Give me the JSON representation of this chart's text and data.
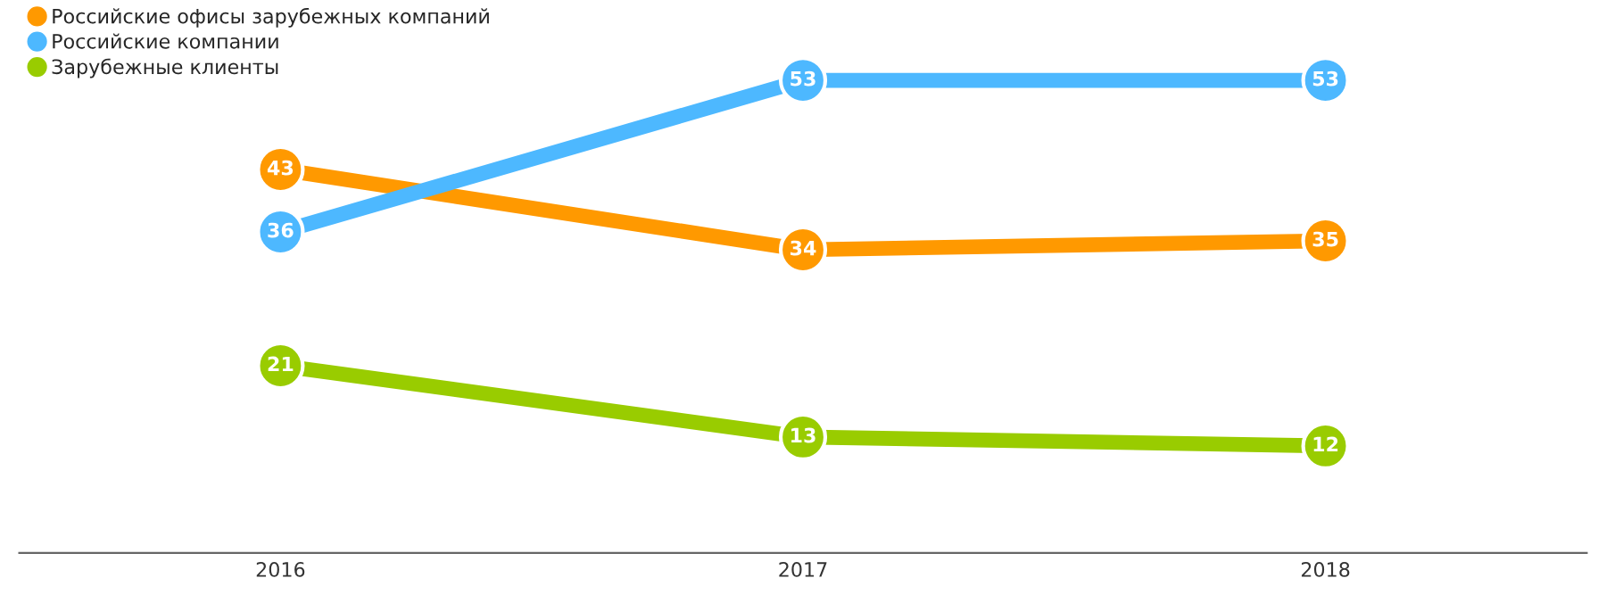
{
  "chart_data": {
    "type": "line",
    "categories": [
      "2016",
      "2017",
      "2018"
    ],
    "series": [
      {
        "name": "Российские офисы зарубежных компаний",
        "color": "#ff9900",
        "values": [
          43,
          34,
          35
        ]
      },
      {
        "name": "Российские компании",
        "color": "#4db8ff",
        "values": [
          36,
          53,
          53
        ]
      },
      {
        "name": "Зарубежные клиенты",
        "color": "#99cc00",
        "values": [
          21,
          13,
          12
        ]
      }
    ],
    "data_labels": true,
    "marker": "circle",
    "legend": "top left",
    "grid": false,
    "tick_labels": "x"
  }
}
